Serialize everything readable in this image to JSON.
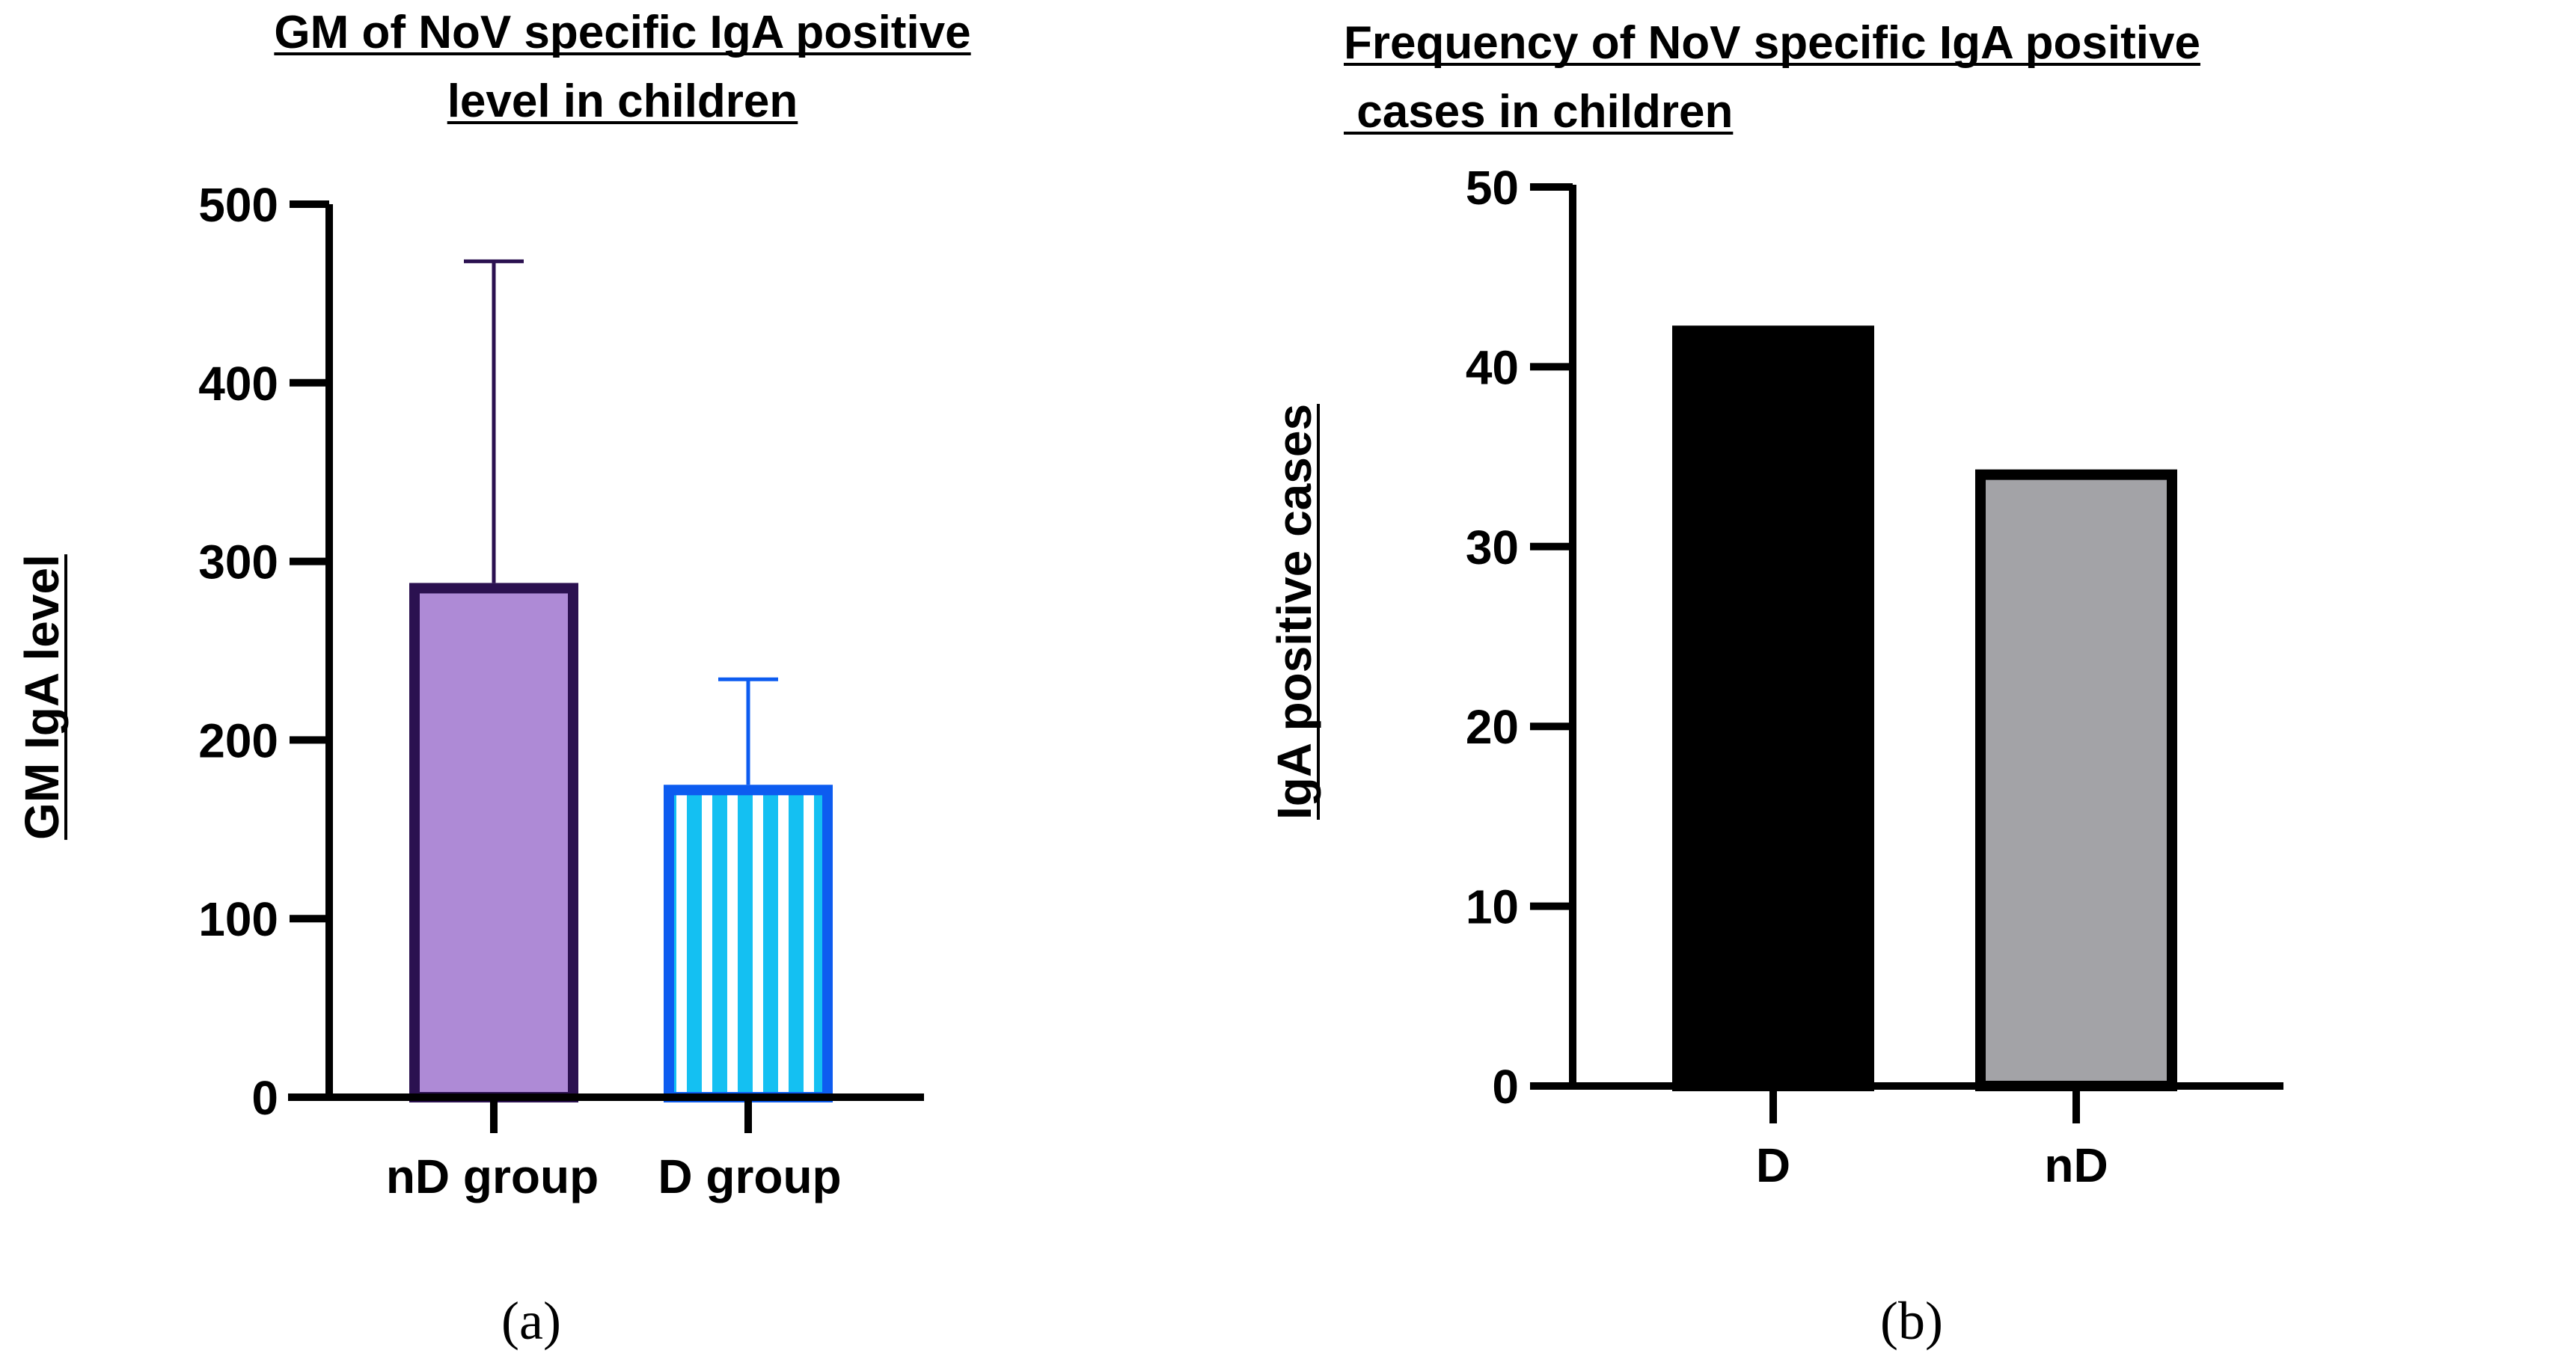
{
  "chart_data": [
    {
      "type": "bar",
      "title": [
        "GM of NoV specific IgA positive",
        "level in children"
      ],
      "xlabel": "",
      "ylabel": "GM IgA level",
      "categories": [
        "nD group",
        "D group"
      ],
      "values": [
        285,
        172
      ],
      "error_bars": [
        183,
        62
      ],
      "ylim": [
        0,
        500
      ],
      "yticks": [
        "0",
        "100",
        "200",
        "300",
        "400",
        "500"
      ],
      "colors": {
        "nD group": {
          "fill": "#ae8ad6",
          "edge": "#2b1150"
        },
        "D group": {
          "fill": "#14c0f2",
          "edge": "#0d5cf0",
          "pattern": "vertical-stripes"
        }
      },
      "caption": "(a)"
    },
    {
      "type": "bar",
      "title": [
        "Frequency of NoV specific IgA positive",
        " cases in children"
      ],
      "xlabel": "",
      "ylabel": "IgA positive cases",
      "categories": [
        "D",
        "nD"
      ],
      "values": [
        42,
        34
      ],
      "ylim": [
        0,
        50
      ],
      "yticks": [
        "0",
        "10",
        "20",
        "30",
        "40",
        "50"
      ],
      "colors": {
        "D": {
          "fill": "#000000",
          "edge": "#000000"
        },
        "nD": {
          "fill": "#a3a3a7",
          "edge": "#000000"
        }
      },
      "caption": "(b)"
    }
  ]
}
